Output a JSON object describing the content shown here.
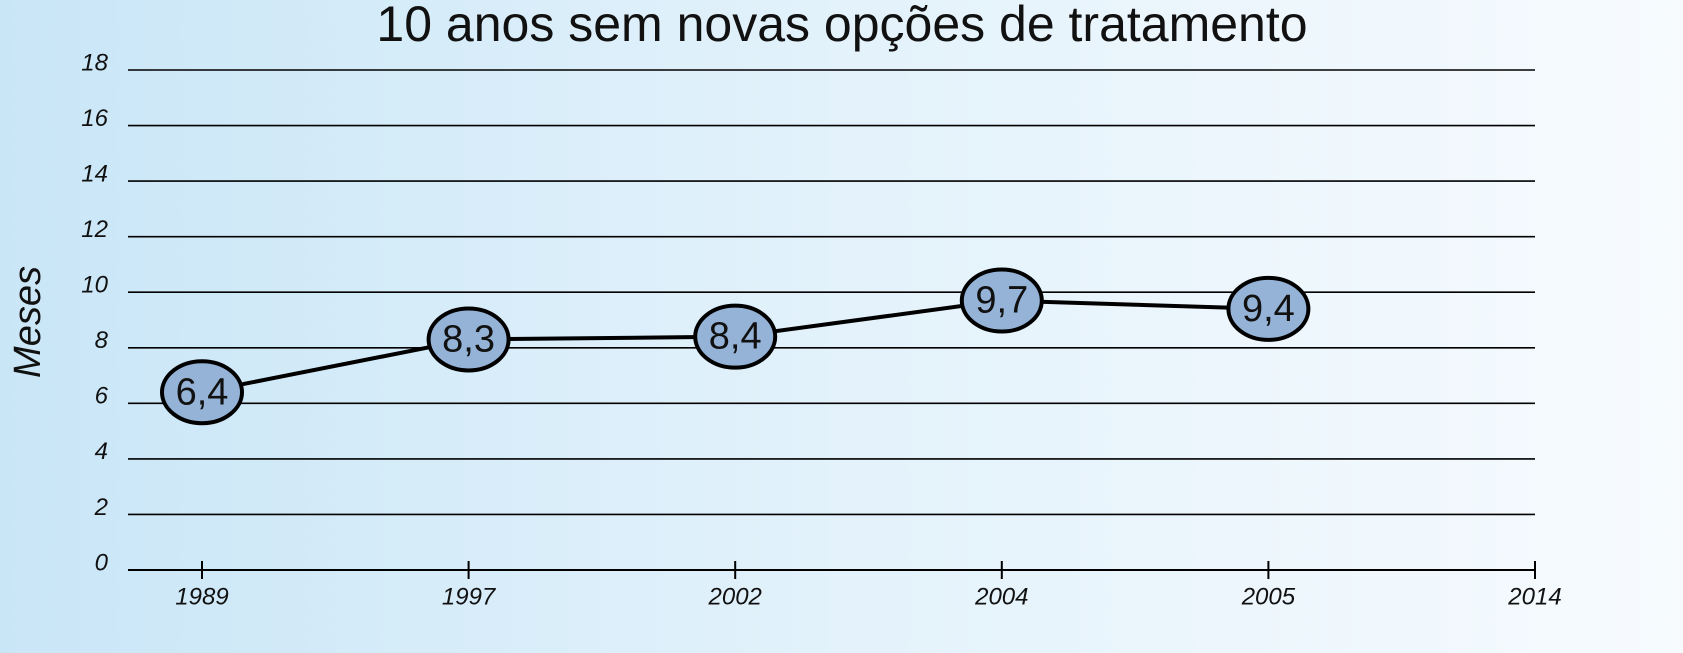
{
  "chart_data": {
    "type": "line",
    "title": "10 anos sem novas opções de tratamento",
    "y_label": "Meses",
    "categories": [
      "1989",
      "1997",
      "2002",
      "2004",
      "2005",
      "2014"
    ],
    "series": [
      {
        "name": "Meses",
        "color": "#95b3d7",
        "values": [
          6.4,
          8.3,
          8.4,
          9.7,
          9.4,
          null
        ],
        "value_labels": [
          "6,4",
          "8,3",
          "8,4",
          "9,7",
          "9,4",
          null
        ]
      }
    ],
    "ylim": [
      0,
      18
    ],
    "yticks": [
      0,
      2,
      4,
      6,
      8,
      10,
      12,
      14,
      16,
      18
    ],
    "grid": true
  }
}
